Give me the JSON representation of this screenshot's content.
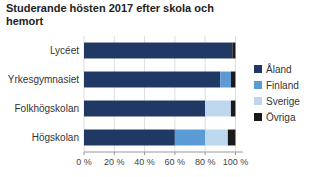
{
  "chart_data": {
    "type": "bar",
    "orientation": "horizontal",
    "stacked": true,
    "title": "Studerande hösten 2017 efter skola och\nhemort",
    "categories": [
      "Lycéet",
      "Yrkesgymnasiet",
      "Folkhögskolan",
      "Högskolan"
    ],
    "series": [
      {
        "name": "Åland",
        "color": "#1F3864",
        "values": [
          98,
          90,
          80,
          60
        ]
      },
      {
        "name": "Finland",
        "color": "#5B9BD5",
        "values": [
          0,
          7,
          0,
          20
        ]
      },
      {
        "name": "Sverige",
        "color": "#BDD7EE",
        "values": [
          0,
          0,
          17,
          15
        ]
      },
      {
        "name": "Övriga",
        "color": "#1A1A1A",
        "values": [
          2,
          3,
          3,
          5
        ]
      }
    ],
    "xlim": [
      0,
      105
    ],
    "xticks": [
      {
        "value": 0,
        "label": "0 %"
      },
      {
        "value": 20,
        "label": "20 %"
      },
      {
        "value": 40,
        "label": "40 %"
      },
      {
        "value": 60,
        "label": "60 %"
      },
      {
        "value": 80,
        "label": "80 %"
      },
      {
        "value": 100,
        "label": "100 %"
      }
    ],
    "grid": true,
    "legend": "right"
  }
}
